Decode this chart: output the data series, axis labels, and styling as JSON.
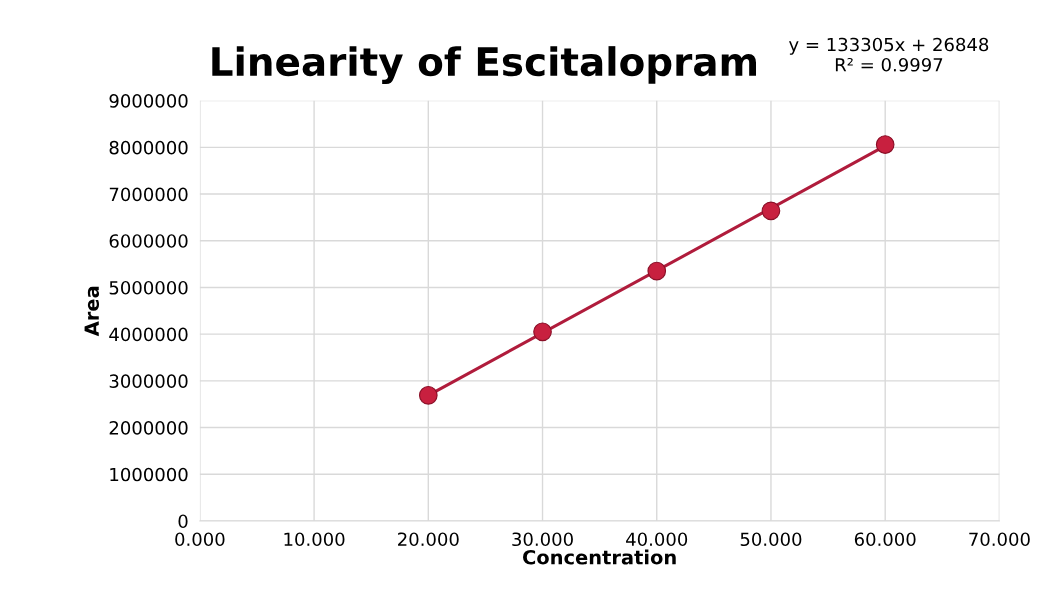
{
  "chart_data": {
    "type": "scatter",
    "title": "Linearity of Escitalopram",
    "xlabel": "Concentration",
    "ylabel": "Area",
    "annotations": [
      "y = 133305x + 26848\nR² = 0.9997"
    ],
    "x": [
      20,
      30,
      40,
      50,
      60
    ],
    "series": [
      {
        "color": "#c8203f",
        "values": [
          2690000,
          4050000,
          5350000,
          6640000,
          8060000
        ],
        "marker": "circle"
      },
      {
        "type": "line",
        "color": "#b01c3c",
        "x": [
          20,
          60
        ],
        "values": [
          2690000,
          8030000
        ],
        "marker": "none",
        "line_style": "solid"
      }
    ],
    "xlim": [
      0,
      70
    ],
    "xticks": [
      {
        "value": 0,
        "label": "0.000"
      },
      {
        "value": 10,
        "label": "10.000"
      },
      {
        "value": 20,
        "label": "20.000"
      },
      {
        "value": 30,
        "label": "30.000"
      },
      {
        "value": 40,
        "label": "40.000"
      },
      {
        "value": 50,
        "label": "50.000"
      },
      {
        "value": 60,
        "label": "60.000"
      },
      {
        "value": 70,
        "label": "70.000"
      }
    ],
    "ylim": [
      0,
      9000000
    ],
    "yticks": [
      0,
      1000000,
      2000000,
      3000000,
      4000000,
      5000000,
      6000000,
      7000000,
      8000000,
      9000000
    ],
    "grid": true
  }
}
